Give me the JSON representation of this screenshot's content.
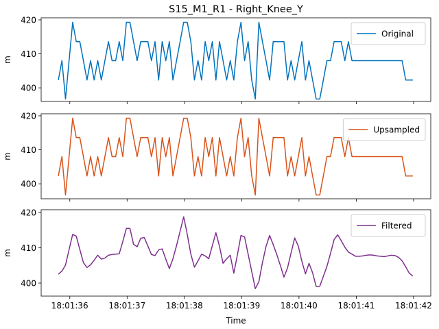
{
  "chart_data": [
    {
      "type": "line",
      "title": "S15_M1_R1 - Right_Knee_Y",
      "ylabel": "m",
      "legend": "upper right",
      "xlim": [
        35.5,
        42.3
      ],
      "ylim": [
        396,
        420.6
      ],
      "yticks": [
        400,
        410,
        420
      ],
      "x": [
        35.8,
        35.8625,
        35.925,
        35.9875,
        36.05,
        36.1125,
        36.175,
        36.2375,
        36.3,
        36.3625,
        36.425,
        36.4875,
        36.55,
        36.6125,
        36.675,
        36.7375,
        36.8,
        36.8625,
        36.925,
        36.9875,
        37.05,
        37.1125,
        37.175,
        37.2375,
        37.3,
        37.3625,
        37.425,
        37.4875,
        37.55,
        37.6125,
        37.675,
        37.7375,
        37.8,
        37.8625,
        37.925,
        37.9875,
        38.05,
        38.1125,
        38.175,
        38.2375,
        38.3,
        38.3625,
        38.425,
        38.4875,
        38.55,
        38.6125,
        38.675,
        38.7375,
        38.8,
        38.8625,
        38.925,
        38.9875,
        39.05,
        39.1125,
        39.175,
        39.2375,
        39.3,
        39.3625,
        39.425,
        39.4875,
        39.55,
        39.6125,
        39.675,
        39.7375,
        39.8,
        39.8625,
        39.925,
        39.9875,
        40.05,
        40.1125,
        40.175,
        40.2375,
        40.3,
        40.3625,
        40.425,
        40.4875,
        40.55,
        40.6125,
        40.675,
        40.7375,
        40.8,
        40.8625,
        40.925,
        40.9875,
        41.05,
        41.1125,
        41.175,
        41.2375,
        41.3,
        41.3625,
        41.425,
        41.4875,
        41.55,
        41.6125,
        41.675,
        41.7375,
        41.8,
        41.8625,
        41.925,
        41.9875
      ],
      "series": [
        {
          "name": "Original",
          "color": "#0072bd",
          "values": [
            402.3,
            408,
            396.7,
            408,
            419.3,
            413.6,
            413.6,
            408,
            402.3,
            408,
            402.3,
            408,
            402.3,
            408,
            413.6,
            408,
            408,
            413.6,
            408,
            419.3,
            419.3,
            413.6,
            408,
            413.6,
            413.6,
            413.6,
            408,
            413.6,
            402.3,
            413.6,
            408,
            413.6,
            402.3,
            408,
            413.6,
            419.3,
            419.3,
            413.6,
            402.3,
            408,
            402.3,
            413.6,
            408,
            413.6,
            402.3,
            413.6,
            408,
            402.3,
            408,
            402.3,
            413.6,
            419.3,
            408,
            413.6,
            402.3,
            396.7,
            419.3,
            413.6,
            408,
            402.3,
            413.6,
            413.6,
            413.6,
            413.6,
            402.3,
            408,
            402.3,
            408,
            413.6,
            402.3,
            408,
            402.3,
            396.7,
            396.7,
            402.3,
            408,
            408,
            413.6,
            413.6,
            413.6,
            408,
            413.6,
            408,
            408,
            408,
            408,
            408,
            408,
            408,
            408,
            408,
            408,
            408,
            408,
            408,
            408,
            408,
            402.3,
            402.3,
            402.3
          ]
        }
      ]
    },
    {
      "type": "line",
      "ylabel": "m",
      "legend": "upper right",
      "xlim": [
        35.5,
        42.3
      ],
      "ylim": [
        395.6,
        420.6
      ],
      "yticks": [
        400,
        410,
        420
      ],
      "x": [
        35.8,
        35.8625,
        35.925,
        35.9875,
        36.05,
        36.1125,
        36.175,
        36.2375,
        36.3,
        36.3625,
        36.425,
        36.4875,
        36.55,
        36.6125,
        36.675,
        36.7375,
        36.8,
        36.8625,
        36.925,
        36.9875,
        37.05,
        37.1125,
        37.175,
        37.2375,
        37.3,
        37.3625,
        37.425,
        37.4875,
        37.55,
        37.6125,
        37.675,
        37.7375,
        37.8,
        37.8625,
        37.925,
        37.9875,
        38.05,
        38.1125,
        38.175,
        38.2375,
        38.3,
        38.3625,
        38.425,
        38.4875,
        38.55,
        38.6125,
        38.675,
        38.7375,
        38.8,
        38.8625,
        38.925,
        38.9875,
        39.05,
        39.1125,
        39.175,
        39.2375,
        39.3,
        39.3625,
        39.425,
        39.4875,
        39.55,
        39.6125,
        39.675,
        39.7375,
        39.8,
        39.8625,
        39.925,
        39.9875,
        40.05,
        40.1125,
        40.175,
        40.2375,
        40.3,
        40.3625,
        40.425,
        40.4875,
        40.55,
        40.6125,
        40.675,
        40.7375,
        40.8,
        40.8625,
        40.925,
        40.9875,
        41.05,
        41.1125,
        41.175,
        41.2375,
        41.3,
        41.3625,
        41.425,
        41.4875,
        41.55,
        41.6125,
        41.675,
        41.7375,
        41.8,
        41.8625,
        41.925,
        41.9875
      ],
      "series": [
        {
          "name": "Upsampled",
          "color": "#d95319",
          "values": [
            402.3,
            408,
            396.7,
            408,
            419.3,
            413.6,
            413.6,
            408,
            402.3,
            408,
            402.3,
            408,
            402.3,
            408,
            413.6,
            408,
            408,
            413.6,
            408,
            419.3,
            419.3,
            413.6,
            408,
            413.6,
            413.6,
            413.6,
            408,
            413.6,
            402.3,
            413.6,
            408,
            413.6,
            402.3,
            408,
            413.6,
            419.3,
            419.3,
            413.6,
            402.3,
            408,
            402.3,
            413.6,
            408,
            413.6,
            402.3,
            413.6,
            408,
            402.3,
            408,
            402.3,
            413.6,
            419.3,
            408,
            413.6,
            402.3,
            396.7,
            419.3,
            413.6,
            408,
            402.3,
            413.6,
            413.6,
            413.6,
            413.6,
            402.3,
            408,
            402.3,
            408,
            413.6,
            402.3,
            408,
            402.3,
            396.7,
            396.7,
            402.3,
            408,
            408,
            413.6,
            413.6,
            413.6,
            408,
            413.6,
            408,
            408,
            408,
            408,
            408,
            408,
            408,
            408,
            408,
            408,
            408,
            408,
            408,
            408,
            408,
            402.3,
            402.3,
            402.3
          ]
        }
      ]
    },
    {
      "type": "line",
      "ylabel": "m",
      "xlabel": "Time",
      "legend": "upper right",
      "xlim": [
        35.5,
        42.3
      ],
      "ylim": [
        396.3,
        420.8
      ],
      "yticks": [
        400,
        410,
        420
      ],
      "xticks": [
        {
          "value": 36,
          "label": "18:01:36"
        },
        {
          "value": 37,
          "label": "18:01:37"
        },
        {
          "value": 38,
          "label": "18:01:38"
        },
        {
          "value": 39,
          "label": "18:01:39"
        },
        {
          "value": 40,
          "label": "18:01:40"
        },
        {
          "value": 41,
          "label": "18:01:41"
        },
        {
          "value": 42,
          "label": "18:01:42"
        }
      ],
      "x": [
        35.8,
        35.8625,
        35.925,
        35.9875,
        36.05,
        36.1125,
        36.175,
        36.2375,
        36.3,
        36.3625,
        36.425,
        36.4875,
        36.55,
        36.6125,
        36.675,
        36.7375,
        36.8,
        36.8625,
        36.925,
        36.9875,
        37.05,
        37.1125,
        37.175,
        37.2375,
        37.3,
        37.3625,
        37.425,
        37.4875,
        37.55,
        37.6125,
        37.675,
        37.7375,
        37.8,
        37.8625,
        37.925,
        37.9875,
        38.05,
        38.1125,
        38.175,
        38.2375,
        38.3,
        38.3625,
        38.425,
        38.4875,
        38.55,
        38.6125,
        38.675,
        38.7375,
        38.8,
        38.8625,
        38.925,
        38.9875,
        39.05,
        39.1125,
        39.175,
        39.2375,
        39.3,
        39.3625,
        39.425,
        39.4875,
        39.55,
        39.6125,
        39.675,
        39.7375,
        39.8,
        39.8625,
        39.925,
        39.9875,
        40.05,
        40.1125,
        40.175,
        40.2375,
        40.3,
        40.3625,
        40.425,
        40.4875,
        40.55,
        40.6125,
        40.675,
        40.7375,
        40.8,
        40.8625,
        40.925,
        40.9875,
        41.05,
        41.1125,
        41.175,
        41.2375,
        41.3,
        41.3625,
        41.425,
        41.4875,
        41.55,
        41.6125,
        41.675,
        41.7375,
        41.8,
        41.8625,
        41.925,
        41.9875
      ],
      "series": [
        {
          "name": "Filtered",
          "color": "#7e2f8e",
          "values": [
            402.5,
            403.4,
            405.1,
            409.5,
            413.8,
            413.3,
            409.5,
            405.8,
            404.4,
            405.2,
            406.5,
            407.9,
            406.8,
            407.1,
            407.9,
            408.1,
            408.2,
            408.3,
            411.8,
            415.5,
            415.5,
            411,
            410.3,
            412.7,
            412.9,
            410.5,
            408.1,
            407.8,
            409.4,
            409.7,
            406.8,
            404.1,
            406.9,
            410.6,
            414.7,
            418.8,
            413.8,
            408.2,
            404.5,
            406.3,
            408.2,
            407.7,
            406.9,
            410.6,
            414.3,
            410.4,
            405.6,
            406.9,
            407.9,
            402.8,
            408,
            413.5,
            413.1,
            408.2,
            403.3,
            398.4,
            400.4,
            405.8,
            410.4,
            413.5,
            410.9,
            408.1,
            405,
            401.7,
            404.3,
            408.6,
            412.8,
            410.5,
            406.2,
            402.6,
            405.6,
            402.9,
            399,
            399.1,
            401.9,
            404.7,
            408.4,
            412.3,
            413.7,
            412,
            410.2,
            408.8,
            408.2,
            407.6,
            407.6,
            407.7,
            407.9,
            408,
            407.9,
            407.7,
            407.6,
            407.5,
            407.7,
            407.9,
            407.8,
            407.3,
            406.3,
            404.6,
            402.8,
            402
          ]
        }
      ]
    }
  ]
}
